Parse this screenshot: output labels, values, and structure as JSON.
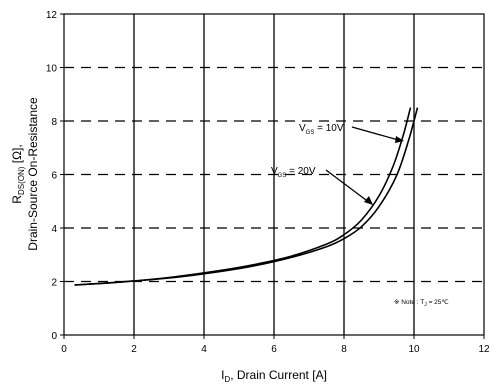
{
  "chart_data": {
    "type": "line",
    "x": {
      "min": 0,
      "max": 12,
      "ticks": [
        0,
        2,
        4,
        6,
        8,
        10,
        12
      ],
      "label_main": "I",
      "label_sub": "D",
      "label_rest": ", Drain Current [A]"
    },
    "y": {
      "min": 0,
      "max": 12,
      "ticks": [
        0,
        2,
        4,
        6,
        8,
        10,
        12
      ],
      "label_line1_main": "R",
      "label_line1_sub": "DS(ON)",
      "label_line1_rest": " [Ω],",
      "label_line2": "Drain-Source On-Resistance"
    },
    "grid": {
      "vertical_solid": true,
      "horizontal_dashed": true
    },
    "series": [
      {
        "name": "VGS = 10V",
        "x": [
          0.3,
          1.5,
          3.0,
          4.5,
          5.5,
          6.5,
          7.5,
          8.0,
          8.5,
          9.0,
          9.4,
          9.7,
          9.9
        ],
        "y": [
          1.87,
          1.97,
          2.15,
          2.42,
          2.65,
          2.95,
          3.4,
          3.75,
          4.3,
          5.2,
          6.3,
          7.5,
          8.5
        ]
      },
      {
        "name": "VGS = 20V",
        "x": [
          0.3,
          1.5,
          3.0,
          4.5,
          5.5,
          6.5,
          7.5,
          8.0,
          8.5,
          9.0,
          9.5,
          9.85,
          10.1
        ],
        "y": [
          1.87,
          1.97,
          2.13,
          2.38,
          2.6,
          2.9,
          3.3,
          3.6,
          4.05,
          4.8,
          5.95,
          7.3,
          8.5
        ]
      }
    ],
    "annotations": [
      {
        "id": "vgs10",
        "main": "V",
        "sub": "GS",
        "rest": " = 10V"
      },
      {
        "id": "vgs20",
        "main": "V",
        "sub": "GS",
        "rest": " = 20V"
      }
    ],
    "note": {
      "marker": "※",
      "text1": " Note : T",
      "sub": "J",
      "text2": " = 25℃"
    }
  }
}
